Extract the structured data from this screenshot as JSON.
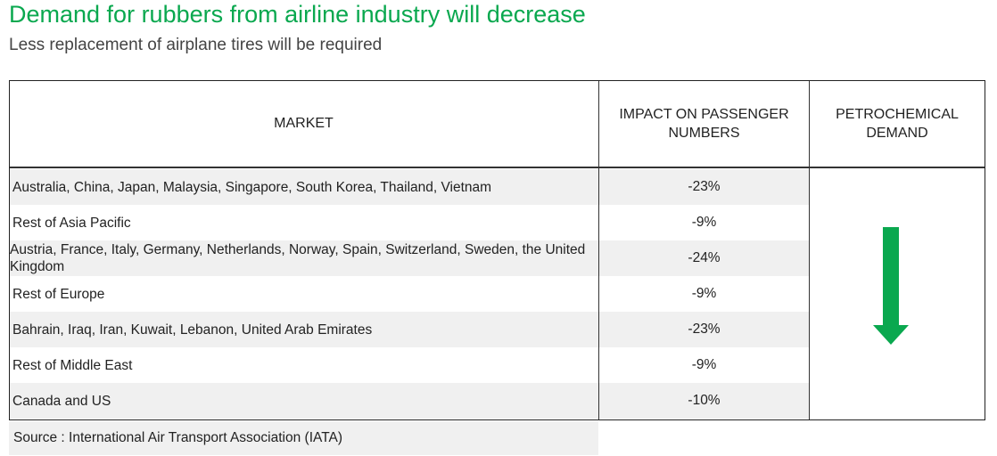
{
  "header": {
    "title": "Demand for rubbers from airline industry will decrease",
    "subtitle": "Less replacement of airplane tires will be required"
  },
  "table": {
    "columns": {
      "market": "MARKET",
      "impact": "IMPACT ON PASSENGER NUMBERS",
      "petrochemical": "PETROCHEMICAL DEMAND"
    },
    "rows": [
      {
        "market": "Australia, China, Japan, Malaysia, Singapore, South Korea, Thailand, Vietnam",
        "impact": "-23%"
      },
      {
        "market": "Rest of Asia Pacific",
        "impact": "-9%"
      },
      {
        "market": "Austria, France, Italy, Germany, Netherlands, Norway, Spain, Switzerland, Sweden, the United Kingdom",
        "impact": "-24%"
      },
      {
        "market": "Rest of Europe",
        "impact": "-9%"
      },
      {
        "market": "Bahrain, Iraq, Iran, Kuwait, Lebanon, United Arab Emirates",
        "impact": "-23%"
      },
      {
        "market": "Rest of Middle East",
        "impact": "-9%"
      },
      {
        "market": "Canada and US",
        "impact": "-10%"
      }
    ],
    "petrochemical_indicator": {
      "icon": "arrow-down-icon",
      "color": "#0aa84f"
    }
  },
  "source": "Source : International Air Transport Association (IATA)"
}
